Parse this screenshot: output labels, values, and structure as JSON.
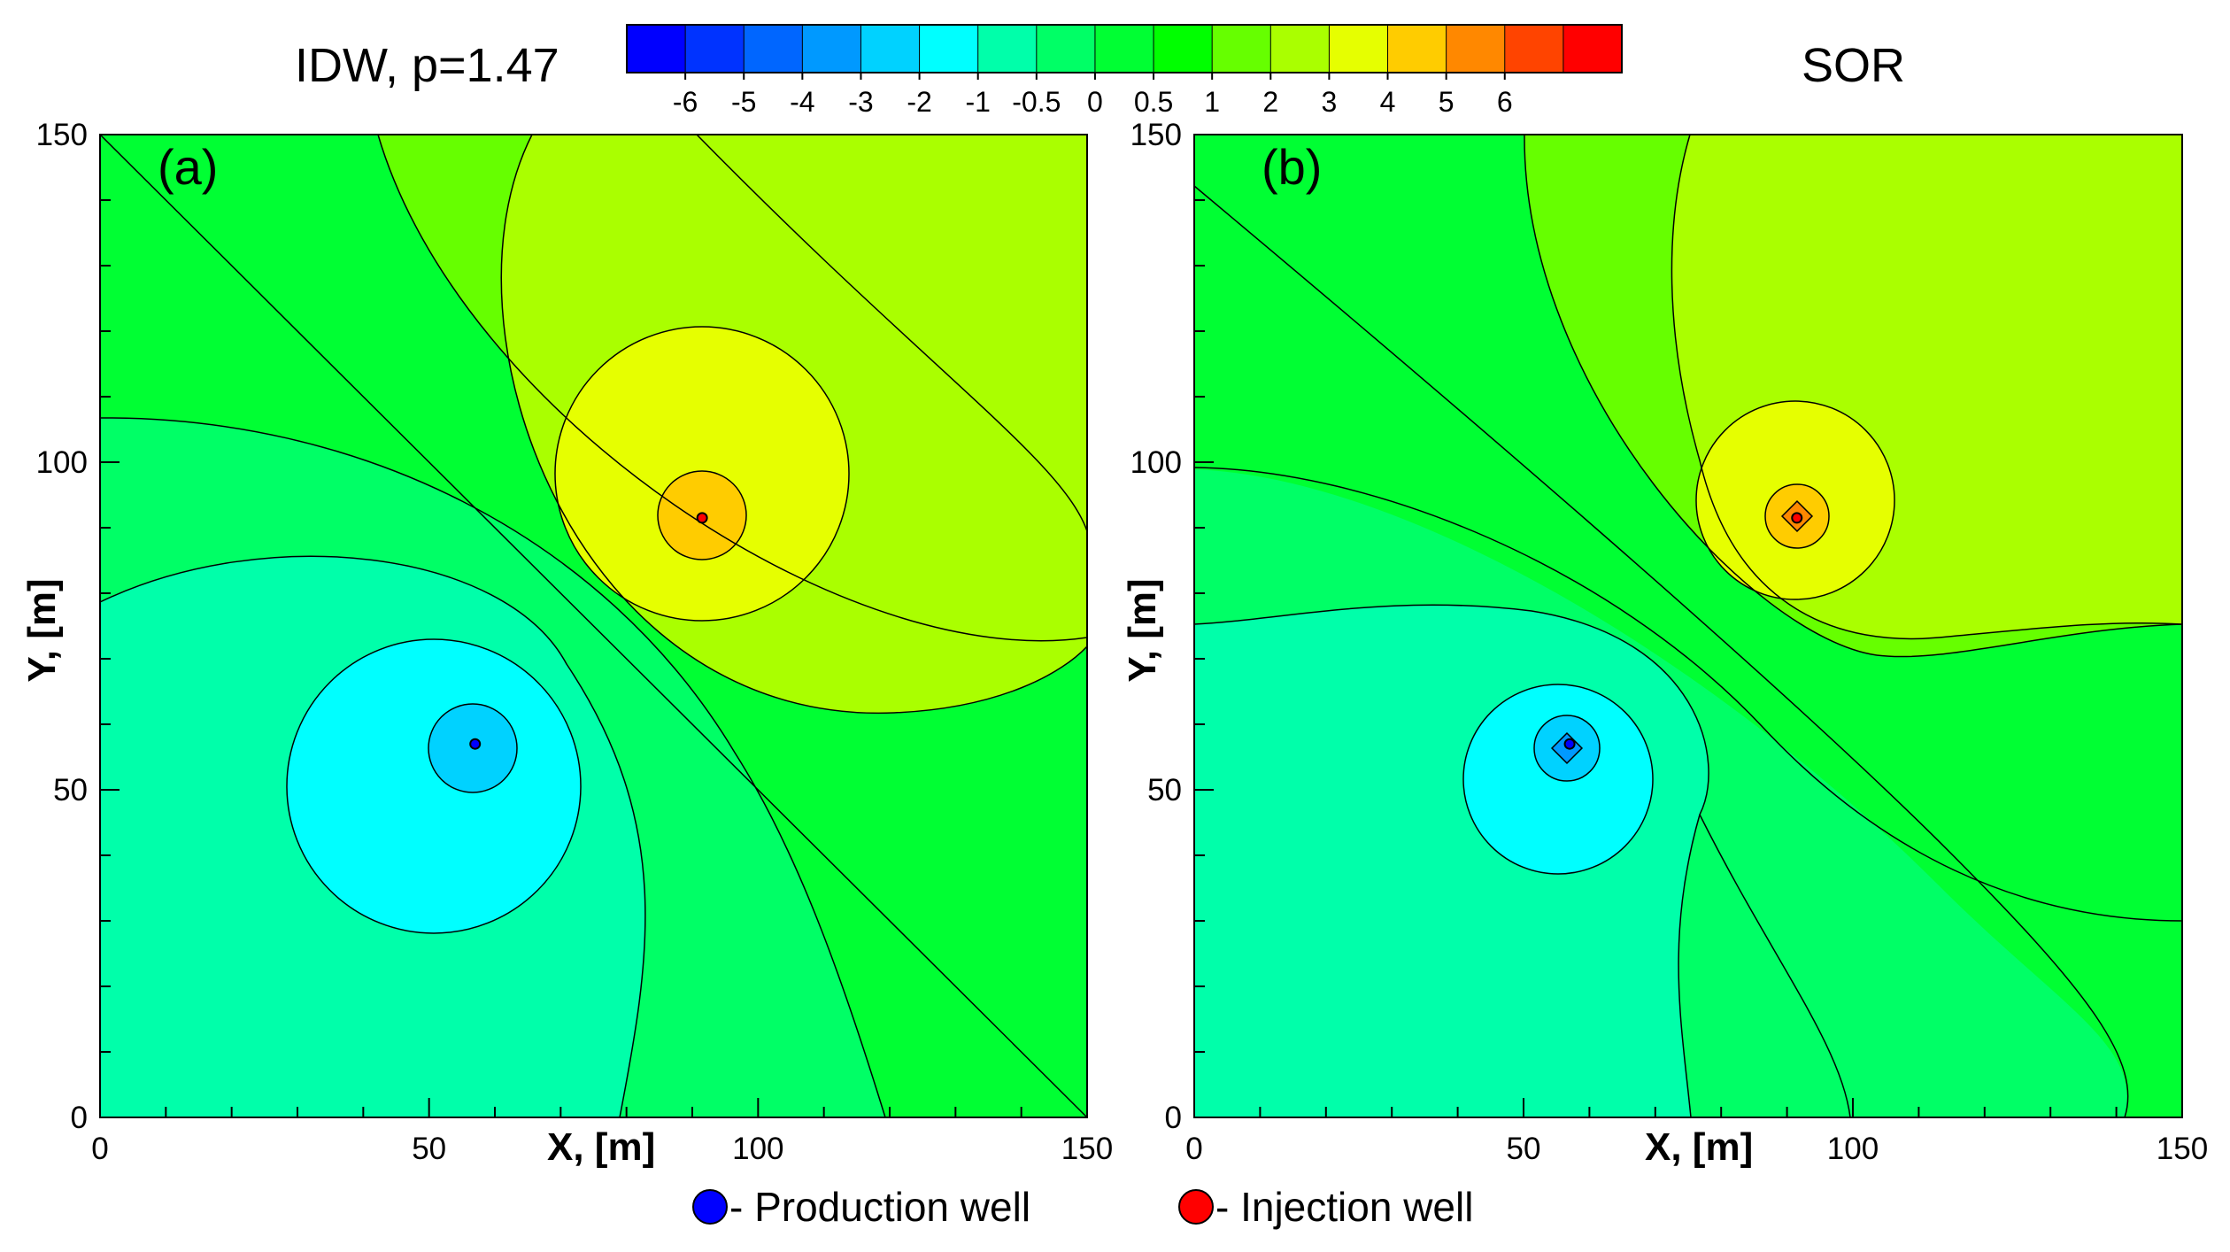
{
  "figure": {
    "title_left": "IDW, p=1.47",
    "title_right": "SOR"
  },
  "colorbar": {
    "colors": [
      "#0000ff",
      "#0033ff",
      "#0066ff",
      "#0099ff",
      "#00d2ff",
      "#00ffff",
      "#00ffaa",
      "#00ff66",
      "#00ff33",
      "#00ff00",
      "#66ff00",
      "#aaff00",
      "#e6ff00",
      "#ffcc00",
      "#ff8800",
      "#ff4400",
      "#ff0000"
    ],
    "tick_labels": [
      "-6",
      "-5",
      "-4",
      "-3",
      "-2",
      "-1",
      "-0.5",
      "0",
      "0.5",
      "1",
      "2",
      "3",
      "4",
      "5",
      "6"
    ]
  },
  "chart_data": [
    {
      "type": "contour",
      "panel_label": "(a)",
      "method": "IDW, p=1.47",
      "xlabel": "X, [m]",
      "ylabel": "Y, [m]",
      "xlim": [
        0,
        150
      ],
      "ylim": [
        0,
        150
      ],
      "xticks": [
        0,
        50,
        100,
        150
      ],
      "yticks": [
        0,
        50,
        100,
        150
      ],
      "contour_levels": [
        -6,
        -5,
        -4,
        -3,
        -2,
        -1,
        -0.5,
        0,
        0.5,
        1,
        2,
        3,
        4,
        5,
        6
      ],
      "wells": [
        {
          "type": "production",
          "x": 57,
          "y": 57
        },
        {
          "type": "injection",
          "x": 91.5,
          "y": 91.5
        }
      ]
    },
    {
      "type": "contour",
      "panel_label": "(b)",
      "method": "SOR",
      "xlabel": "X, [m]",
      "ylabel": "Y, [m]",
      "xlim": [
        0,
        150
      ],
      "ylim": [
        0,
        150
      ],
      "xticks": [
        0,
        50,
        100,
        150
      ],
      "yticks": [
        0,
        50,
        100,
        150
      ],
      "contour_levels": [
        -6,
        -5,
        -4,
        -3,
        -2,
        -1,
        -0.5,
        0,
        0.5,
        1,
        2,
        3,
        4,
        5,
        6
      ],
      "wells": [
        {
          "type": "production",
          "x": 57,
          "y": 57
        },
        {
          "type": "injection",
          "x": 91.5,
          "y": 91.5
        }
      ]
    }
  ],
  "legend": {
    "items": [
      {
        "label": "- Production well",
        "color": "#0000ff"
      },
      {
        "label": "- Injection well",
        "color": "#ff0000"
      }
    ]
  }
}
